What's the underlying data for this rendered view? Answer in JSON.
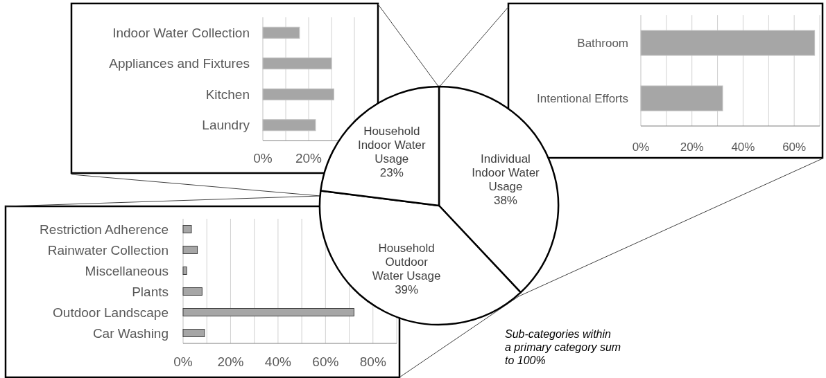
{
  "chart_data": [
    {
      "type": "bar",
      "orientation": "horizontal",
      "categories": [
        "Indoor Water Collection",
        "Appliances and Fixtures",
        "Kitchen",
        "Laundry"
      ],
      "values": [
        16,
        30,
        31,
        23
      ],
      "color": "#a6a6a6",
      "xlim": [
        0,
        40
      ],
      "xticks": [
        {
          "value": 0,
          "label": "0%"
        },
        {
          "value": 10,
          "label": null
        },
        {
          "value": 20,
          "label": "20%"
        },
        {
          "value": 30,
          "label": null
        },
        {
          "value": 40,
          "label": null
        }
      ],
      "grid": "x"
    },
    {
      "type": "bar",
      "orientation": "horizontal",
      "categories": [
        "Bathroom",
        "Intentional Efforts"
      ],
      "values": [
        68,
        32
      ],
      "color": "#a6a6a6",
      "xlim": [
        0,
        70
      ],
      "xticks": [
        {
          "value": 0,
          "label": "0%"
        },
        {
          "value": 10,
          "label": null
        },
        {
          "value": 20,
          "label": "20%"
        },
        {
          "value": 30,
          "label": null
        },
        {
          "value": 40,
          "label": "40%"
        },
        {
          "value": 50,
          "label": null
        },
        {
          "value": 60,
          "label": "60%"
        },
        {
          "value": 70,
          "label": null
        }
      ],
      "grid": "x"
    },
    {
      "type": "pie",
      "categories": [
        "Individual Indoor Water Usage",
        "Household Outdoor Water Usage",
        "Household Indoor Water Usage"
      ],
      "values": [
        38,
        39,
        23
      ],
      "colors": [
        "#ffffff",
        "#ffffff",
        "#ffffff"
      ],
      "value_labels": [
        "38%",
        "39%",
        "23%"
      ],
      "annotations": [
        "Sub-categories within a primary category sum to 100%"
      ]
    },
    {
      "type": "bar",
      "orientation": "horizontal",
      "categories": [
        "Restriction Adherence",
        "Rainwater Collection",
        "Miscellaneous",
        "Plants",
        "Outdoor Landscape",
        "Car Washing"
      ],
      "values": [
        3.5,
        6,
        1.5,
        8,
        72,
        9
      ],
      "color": "#a6a6a6",
      "xlim": [
        0,
        90
      ],
      "xticks": [
        {
          "value": 0,
          "label": "0%"
        },
        {
          "value": 10,
          "label": null
        },
        {
          "value": 20,
          "label": "20%"
        },
        {
          "value": 30,
          "label": null
        },
        {
          "value": 40,
          "label": "40%"
        },
        {
          "value": 50,
          "label": null
        },
        {
          "value": 60,
          "label": "60%"
        },
        {
          "value": 70,
          "label": null
        },
        {
          "value": 80,
          "label": "80%"
        },
        {
          "value": 90,
          "label": null
        }
      ],
      "grid": "x"
    }
  ]
}
